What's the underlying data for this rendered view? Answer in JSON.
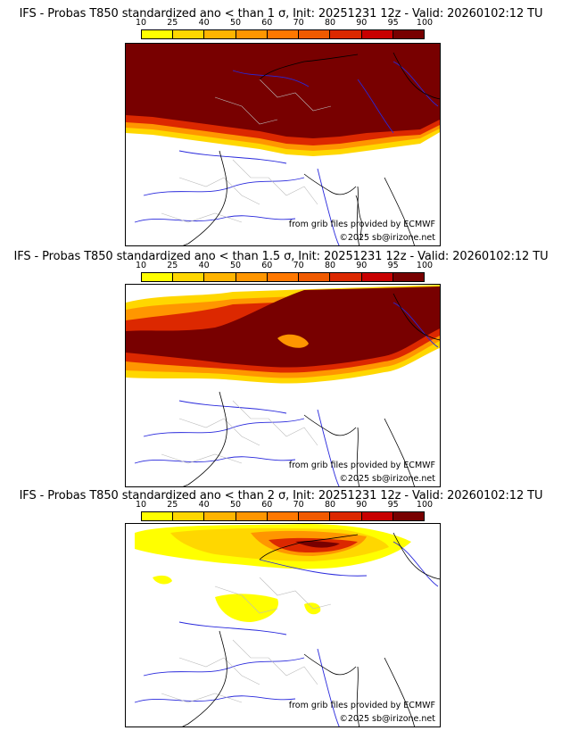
{
  "palette": {
    "c10": "#ffff00",
    "c25": "#ffd700",
    "c40": "#ffb400",
    "c50": "#ff9600",
    "c60": "#ff7800",
    "c70": "#f05a00",
    "c80": "#dc2800",
    "c90": "#c80000",
    "c95": "#a00000",
    "c100": "#780000",
    "border_country": "#000000",
    "border_region": "#bbbbbb",
    "river": "#2828dc"
  },
  "scale_ticks": [
    "10",
    "25",
    "40",
    "50",
    "60",
    "70",
    "80",
    "90",
    "95",
    "100"
  ],
  "panels": [
    {
      "title": "IFS - Probas T850  standardized ano < than 1 σ, Init: 20251231 12z - Valid: 20260102:12 TU",
      "credit_source": "from grib files provided by ECMWF",
      "credit_copyright": "©2025 sb@irizone.net"
    },
    {
      "title": "IFS - Probas T850  standardized ano < than 1.5 σ, Init: 20251231 12z - Valid: 20260102:12 TU",
      "credit_source": "from grib files provided by ECMWF",
      "credit_copyright": "©2025 sb@irizone.net"
    },
    {
      "title": "IFS - Probas T850  standardized ano < than 2 σ, Init: 20251231 12z - Valid: 20260102:12 TU",
      "credit_source": "from grib files provided by ECMWF",
      "credit_copyright": "©2025 sb@irizone.net"
    }
  ]
}
